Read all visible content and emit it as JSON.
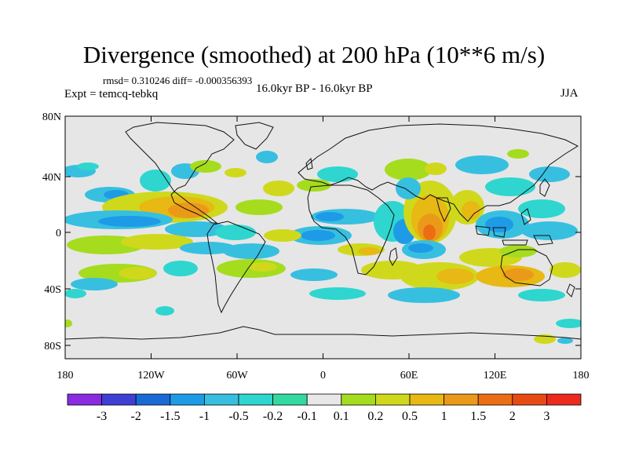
{
  "header": {
    "title": "Divergence (smoothed) at 200 hPa (10**6 m/s)",
    "stats": "rmsd= 0.310246 diff= -0.000356393",
    "experiment": "Expt = temcq-tebkq",
    "period": "16.0kyr BP - 16.0kyr BP",
    "season": "JJA"
  },
  "map": {
    "projection": "cylindrical equidistant",
    "background_color": "#e6e6e6",
    "lat_ticks": [
      "80N",
      "40N",
      "0",
      "40S",
      "80S"
    ],
    "lon_ticks": [
      "180",
      "120W",
      "60W",
      "0",
      "60E",
      "120E",
      "180"
    ]
  },
  "colorbar": {
    "colors": [
      "#8a2be2",
      "#3f3fd6",
      "#1a6ad6",
      "#1e9be6",
      "#37bfe0",
      "#2ed6cf",
      "#32d9a0",
      "#e8e8e8",
      "#a5dc1e",
      "#d0d81c",
      "#e8b814",
      "#ea9a18",
      "#ec6e14",
      "#e84a14",
      "#ec2a1e"
    ],
    "labels": [
      "-3",
      "-2",
      "-1.5",
      "-1",
      "-0.5",
      "-0.2",
      "-0.1",
      "0.1",
      "0.2",
      "0.5",
      "1",
      "1.5",
      "2",
      "3"
    ]
  }
}
